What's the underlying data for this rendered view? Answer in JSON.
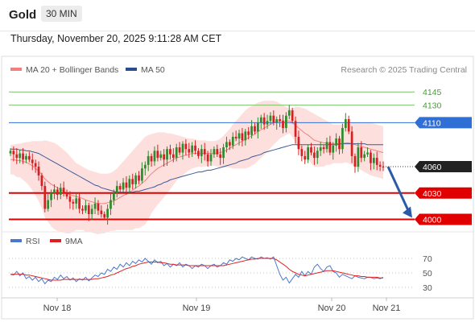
{
  "header": {
    "symbol": "Gold",
    "timeframe": "30 MIN",
    "datetime": "Thursday, November 20, 2025 9:11:28 AM CET"
  },
  "legend": {
    "items": [
      {
        "label": "MA 20 + Bollinger Bands",
        "color": "#f08080"
      },
      {
        "label": "MA 50",
        "color": "#2a4d8f"
      }
    ],
    "research": "Research © 2025 Trading Central"
  },
  "rsi_legend": {
    "items": [
      {
        "label": "RSI",
        "color": "#4a78d0"
      },
      {
        "label": "9MA",
        "color": "#e02020"
      }
    ]
  },
  "colors": {
    "bull": "#2e8b2e",
    "bear": "#d42020",
    "bb_fill": "#fde0de",
    "ma20": "#f08080",
    "ma50": "#3a5a9a",
    "res_line": "#7ac36a",
    "pivot": "#2f6fd6",
    "support": "#e00000",
    "current": "#222222",
    "arrow": "#2a5aa8"
  },
  "chart_data": [
    {
      "type": "candlestick",
      "ylim": [
        3995,
        4158
      ],
      "x_labels": [
        "Nov 18",
        "Nov 19",
        "Nov 20",
        "Nov 21"
      ],
      "levels": [
        {
          "value": 4145,
          "label": "4145",
          "kind": "resistance"
        },
        {
          "value": 4130,
          "label": "4130",
          "kind": "resistance"
        },
        {
          "value": 4110,
          "label": "4110",
          "kind": "pivot"
        },
        {
          "value": 4060,
          "label": "4060",
          "kind": "current"
        },
        {
          "value": 4030,
          "label": "4030",
          "kind": "support"
        },
        {
          "value": 4000,
          "label": "4000",
          "kind": "support"
        }
      ],
      "closes": [
        4078,
        4074,
        4070,
        4075,
        4068,
        4072,
        4068,
        4064,
        4060,
        4050,
        4038,
        4012,
        4022,
        4030,
        4034,
        4028,
        4036,
        4030,
        4026,
        4020,
        4018,
        4024,
        4012,
        4010,
        4016,
        4006,
        4012,
        4018,
        4010,
        4006,
        4002,
        4012,
        4022,
        4030,
        4038,
        4034,
        4042,
        4036,
        4046,
        4040,
        4050,
        4044,
        4058,
        4062,
        4072,
        4066,
        4078,
        4070,
        4074,
        4068,
        4080,
        4074,
        4070,
        4082,
        4076,
        4086,
        4080,
        4076,
        4084,
        4078,
        4072,
        4080,
        4074,
        4066,
        4074,
        4080,
        4074,
        4070,
        4082,
        4088,
        4084,
        4094,
        4092,
        4098,
        4090,
        4100,
        4096,
        4106,
        4100,
        4110,
        4116,
        4108,
        4112,
        4118,
        4110,
        4114,
        4112,
        4104,
        4118,
        4124,
        4112,
        4094,
        4080,
        4072,
        4068,
        4082,
        4076,
        4070,
        4078,
        4082,
        4080,
        4088,
        4076,
        4084,
        4092,
        4080,
        4104,
        4114,
        4100,
        4072,
        4060,
        4082,
        4070,
        4074,
        4076,
        4064,
        4070,
        4062,
        4060,
        4059
      ],
      "ma20": [
        4068,
        4068,
        4067,
        4067,
        4066,
        4065,
        4063,
        4061,
        4058,
        4055,
        4051,
        4046,
        4043,
        4040,
        4038,
        4036,
        4034,
        4032,
        4030,
        4028,
        4027,
        4026,
        4025,
        4024,
        4022,
        4021,
        4020,
        4019,
        4018,
        4018,
        4018,
        4019,
        4020,
        4021,
        4023,
        4025,
        4027,
        4029,
        4031,
        4033,
        4036,
        4038,
        4041,
        4044,
        4048,
        4052,
        4055,
        4058,
        4060,
        4062,
        4064,
        4066,
        4068,
        4070,
        4071,
        4072,
        4073,
        4074,
        4075,
        4075,
        4075,
        4075,
        4075,
        4075,
        4075,
        4075,
        4075,
        4076,
        4077,
        4079,
        4081,
        4083,
        4085,
        4087,
        4089,
        4091,
        4093,
        4095,
        4097,
        4100,
        4102,
        4104,
        4106,
        4108,
        4110,
        4111,
        4112,
        4112,
        4112,
        4112,
        4110,
        4107,
        4104,
        4101,
        4098,
        4096,
        4093,
        4090,
        4089,
        4088,
        4087,
        4087,
        4086,
        4086,
        4086,
        4086,
        4086,
        4087,
        4087,
        4086,
        4085,
        4084,
        4083,
        4082,
        4081,
        4080,
        4079,
        4078,
        4077,
        4076
      ],
      "bb_upper": [
        4085,
        4085,
        4086,
        4086,
        4087,
        4088,
        4088,
        4089,
        4089,
        4089,
        4089,
        4090,
        4089,
        4088,
        4087,
        4085,
        4082,
        4079,
        4076,
        4072,
        4068,
        4064,
        4062,
        4060,
        4058,
        4056,
        4055,
        4054,
        4053,
        4052,
        4052,
        4052,
        4053,
        4055,
        4058,
        4062,
        4066,
        4070,
        4074,
        4078,
        4082,
        4086,
        4090,
        4094,
        4096,
        4097,
        4098,
        4099,
        4099,
        4099,
        4098,
        4098,
        4097,
        4096,
        4095,
        4094,
        4093,
        4092,
        4092,
        4091,
        4090,
        4090,
        4090,
        4089,
        4089,
        4089,
        4090,
        4092,
        4095,
        4099,
        4103,
        4108,
        4112,
        4116,
        4120,
        4124,
        4127,
        4129,
        4131,
        4133,
        4134,
        4135,
        4135,
        4135,
        4135,
        4134,
        4132,
        4130,
        4128,
        4126,
        4126,
        4128,
        4128,
        4127,
        4126,
        4124,
        4122,
        4120,
        4118,
        4116,
        4114,
        4112,
        4110,
        4108,
        4108,
        4108,
        4108,
        4109,
        4110,
        4110,
        4110,
        4110,
        4110,
        4110,
        4110,
        4110,
        4109,
        4108,
        4107,
        4106
      ],
      "bb_lower": [
        4051,
        4051,
        4048,
        4048,
        4045,
        4042,
        4038,
        4033,
        4027,
        4021,
        4013,
        4002,
        3997,
        3992,
        3989,
        3987,
        3986,
        3985,
        3984,
        3984,
        3986,
        3988,
        3988,
        3988,
        3986,
        3986,
        3985,
        3984,
        3983,
        3984,
        3984,
        3986,
        3987,
        3987,
        3988,
        3988,
        3988,
        3988,
        3988,
        3988,
        3990,
        3990,
        3992,
        3994,
        4000,
        4007,
        4012,
        4017,
        4021,
        4025,
        4030,
        4034,
        4039,
        4044,
        4047,
        4050,
        4053,
        4056,
        4058,
        4059,
        4060,
        4060,
        4060,
        4061,
        4061,
        4061,
        4060,
        4060,
        4059,
        4059,
        4059,
        4058,
        4058,
        4058,
        4058,
        4058,
        4059,
        4061,
        4063,
        4067,
        4070,
        4073,
        4077,
        4081,
        4085,
        4088,
        4092,
        4094,
        4096,
        4098,
        4094,
        4086,
        4080,
        4075,
        4070,
        4068,
        4064,
        4060,
        4060,
        4060,
        4060,
        4062,
        4062,
        4064,
        4064,
        4064,
        4064,
        4065,
        4064,
        4062,
        4060,
        4058,
        4056,
        4054,
        4052,
        4050,
        4049,
        4048,
        4047,
        4046
      ],
      "ma50": [
        4080,
        4080,
        4080,
        4079,
        4079,
        4078,
        4078,
        4077,
        4076,
        4075,
        4073,
        4071,
        4069,
        4067,
        4065,
        4063,
        4061,
        4059,
        4057,
        4055,
        4053,
        4051,
        4049,
        4047,
        4045,
        4043,
        4041,
        4039,
        4038,
        4036,
        4035,
        4034,
        4033,
        4032,
        4031,
        4031,
        4031,
        4031,
        4031,
        4031,
        4032,
        4032,
        4033,
        4034,
        4035,
        4036,
        4037,
        4039,
        4040,
        4042,
        4043,
        4045,
        4046,
        4047,
        4048,
        4049,
        4050,
        4051,
        4052,
        4053,
        4054,
        4054,
        4055,
        4056,
        4056,
        4057,
        4058,
        4059,
        4060,
        4061,
        4062,
        4063,
        4064,
        4066,
        4067,
        4068,
        4069,
        4071,
        4072,
        4073,
        4074,
        4076,
        4077,
        4078,
        4079,
        4080,
        4081,
        4082,
        4083,
        4084,
        4085,
        4085,
        4085,
        4085,
        4085,
        4085,
        4085,
        4085,
        4085,
        4085,
        4085,
        4085,
        4085,
        4085,
        4085,
        4086,
        4086,
        4086,
        4086,
        4086,
        4086,
        4086,
        4086,
        4086,
        4085,
        4085,
        4085,
        4085,
        4085,
        4085
      ]
    },
    {
      "type": "line",
      "ylim": [
        20,
        80
      ],
      "y_ticks": [
        30,
        50,
        70
      ],
      "series": [
        {
          "name": "RSI",
          "values": [
            48,
            47,
            52,
            46,
            50,
            42,
            45,
            40,
            44,
            38,
            42,
            35,
            40,
            38,
            44,
            41,
            47,
            42,
            45,
            40,
            43,
            38,
            42,
            40,
            44,
            39,
            43,
            47,
            45,
            50,
            48,
            55,
            52,
            58,
            55,
            62,
            58,
            64,
            60,
            66,
            63,
            68,
            65,
            70,
            66,
            62,
            68,
            64,
            66,
            60,
            63,
            58,
            62,
            60,
            64,
            58,
            62,
            60,
            56,
            60,
            58,
            62,
            60,
            56,
            60,
            62,
            58,
            60,
            64,
            62,
            68,
            66,
            70,
            68,
            72,
            70,
            68,
            72,
            70,
            69,
            72,
            70,
            71,
            69,
            72,
            60,
            48,
            40,
            44,
            36,
            42,
            48,
            44,
            52,
            46,
            52,
            48,
            58,
            62,
            56,
            52,
            58,
            60,
            52,
            50,
            44,
            48,
            46,
            44,
            42,
            46,
            44,
            43,
            42,
            44,
            44,
            42,
            43,
            42,
            44
          ]
        },
        {
          "name": "9MA",
          "values": [
            48,
            48,
            48,
            48,
            48,
            47,
            47,
            46,
            45,
            44,
            43,
            42,
            41,
            40,
            40,
            40,
            40,
            41,
            41,
            41,
            41,
            41,
            41,
            41,
            41,
            41,
            41,
            42,
            42,
            43,
            44,
            45,
            47,
            48,
            50,
            52,
            54,
            56,
            57,
            59,
            60,
            62,
            63,
            64,
            65,
            65,
            65,
            65,
            64,
            64,
            63,
            62,
            62,
            61,
            61,
            61,
            61,
            60,
            60,
            60,
            60,
            60,
            60,
            60,
            60,
            60,
            60,
            60,
            60,
            61,
            62,
            63,
            64,
            65,
            66,
            67,
            68,
            69,
            69,
            70,
            70,
            70,
            70,
            70,
            70,
            68,
            65,
            62,
            59,
            55,
            52,
            50,
            48,
            47,
            46,
            47,
            48,
            49,
            50,
            51,
            52,
            53,
            53,
            53,
            52,
            51,
            50,
            49,
            48,
            47,
            46,
            46,
            45,
            45,
            44,
            44,
            44,
            44,
            43,
            43
          ]
        }
      ]
    }
  ]
}
